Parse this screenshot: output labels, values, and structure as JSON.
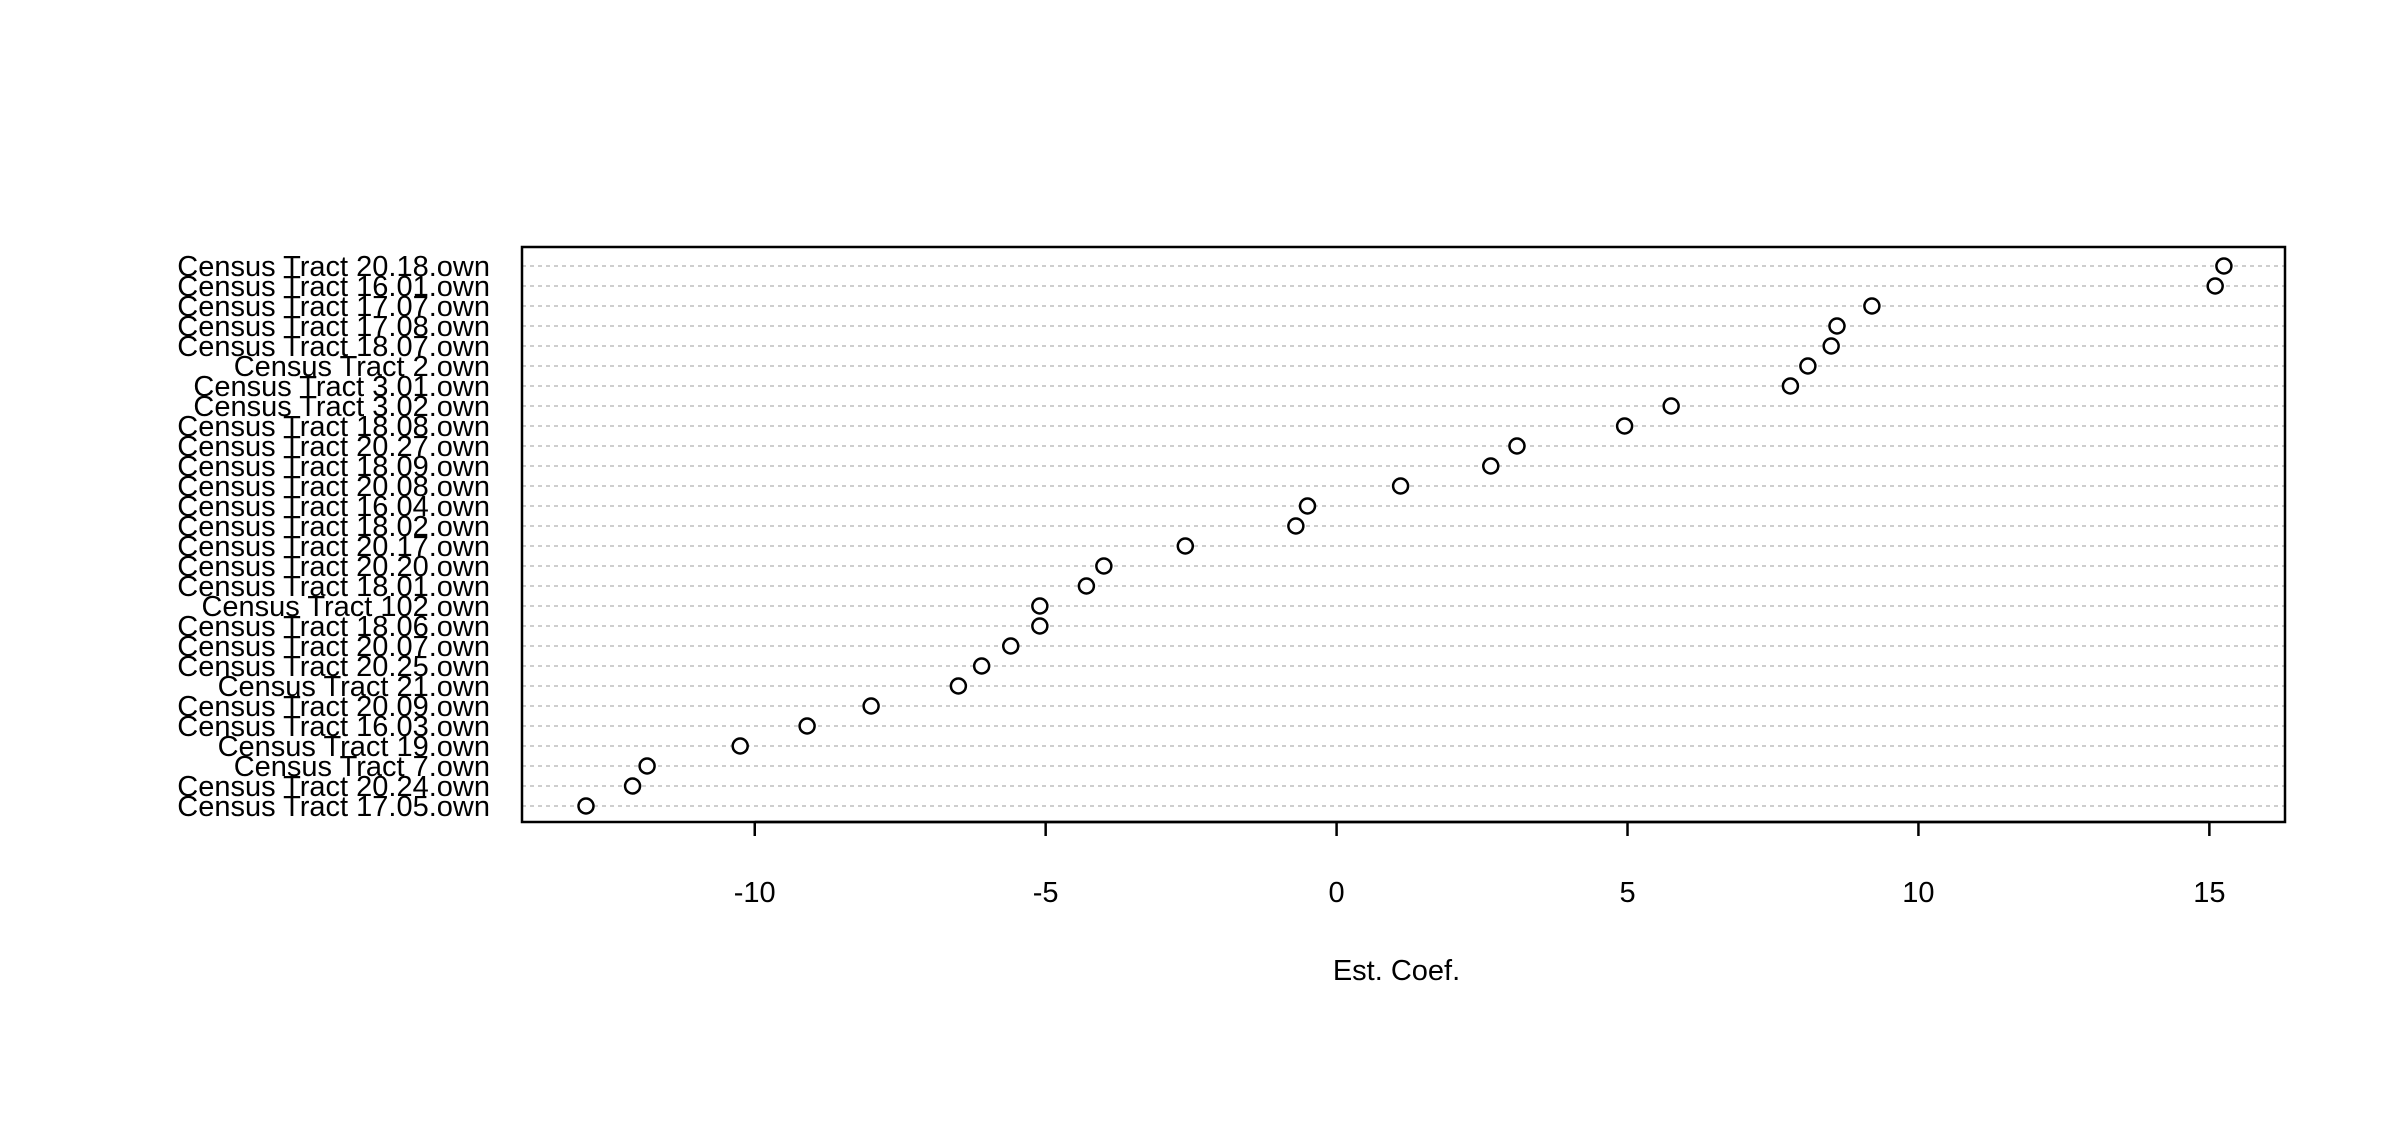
{
  "chart_data": {
    "type": "scatter",
    "title": "",
    "xlabel": "Est. Coef.",
    "ylabel": "",
    "xlim": [
      -14,
      16.3
    ],
    "xticks": [
      -10,
      -5,
      0,
      5,
      10,
      15
    ],
    "xtick_labels": [
      "-10",
      "-5",
      "0",
      "5",
      "10",
      "15"
    ],
    "grid": "horizontal-dotted",
    "categories": [
      "Census Tract 20.18.own",
      "Census Tract 16.01.own",
      "Census Tract 17.07.own",
      "Census Tract 17.08.own",
      "Census Tract 18.07.own",
      "Census Tract 2.own",
      "Census Tract 3.01.own",
      "Census Tract 3.02.own",
      "Census Tract 18.08.own",
      "Census Tract 20.27.own",
      "Census Tract 18.09.own",
      "Census Tract 20.08.own",
      "Census Tract 16.04.own",
      "Census Tract 18.02.own",
      "Census Tract 20.17.own",
      "Census Tract 20.20.own",
      "Census Tract 18.01.own",
      "Census Tract 102.own",
      "Census Tract 18.06.own",
      "Census Tract 20.07.own",
      "Census Tract 20.25.own",
      "Census Tract 21.own",
      "Census Tract 20.09.own",
      "Census Tract 16.03.own",
      "Census Tract 19.own",
      "Census Tract 7.own",
      "Census Tract 20.24.own",
      "Census Tract 17.05.own"
    ],
    "values": [
      15.25,
      15.1,
      9.2,
      8.6,
      8.5,
      8.1,
      7.8,
      5.75,
      4.95,
      3.1,
      2.65,
      1.1,
      -0.5,
      -0.7,
      -2.6,
      -4.0,
      -4.3,
      -5.1,
      -5.1,
      -5.6,
      -6.1,
      -6.5,
      -8.0,
      -9.1,
      -10.25,
      -11.85,
      -12.1,
      -12.9
    ]
  }
}
